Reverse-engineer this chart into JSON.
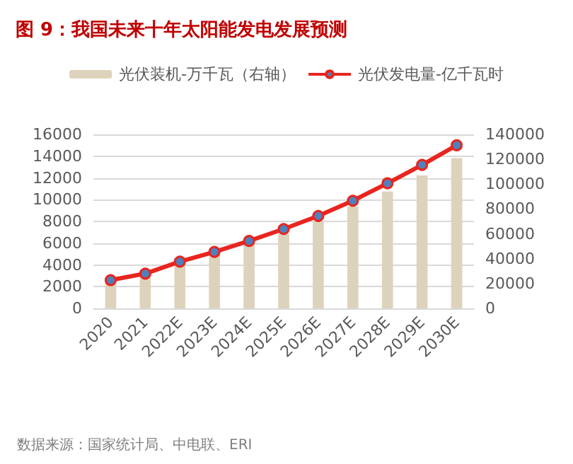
{
  "chart_data": {
    "type": "bar",
    "title": "图 9：我国未来十年太阳能发电发展预测",
    "categories": [
      "2020",
      "2021",
      "2022E",
      "2023E",
      "2024E",
      "2025E",
      "2026E",
      "2027E",
      "2028E",
      "2029E",
      "2030E"
    ],
    "series": [
      {
        "name": "光伏装机-万千瓦（右轴）",
        "axis": "y2",
        "color": "#ddd3bc",
        "values": [
          25000,
          31000,
          37000,
          47000,
          56000,
          60000,
          70000,
          82000,
          94000,
          107000,
          121000
        ]
      },
      {
        "name": "光伏发电量-亿千瓦时",
        "type": "line",
        "color": "#e8251f",
        "marker": "circle",
        "values": [
          2600,
          3200,
          4300,
          5200,
          6200,
          7300,
          8500,
          9900,
          11500,
          13200,
          15000
        ]
      }
    ],
    "ylim": [
      0,
      16000
    ],
    "yticks": [
      0,
      2000,
      4000,
      6000,
      8000,
      10000,
      12000,
      14000,
      16000
    ],
    "y2lim": [
      0,
      140000
    ],
    "y2ticks": [
      0,
      20000,
      40000,
      60000,
      80000,
      100000,
      120000,
      140000
    ],
    "grid": "y",
    "legend": "top",
    "annotations": [
      "数据来源：国家统计局、中电联、ERI"
    ]
  }
}
